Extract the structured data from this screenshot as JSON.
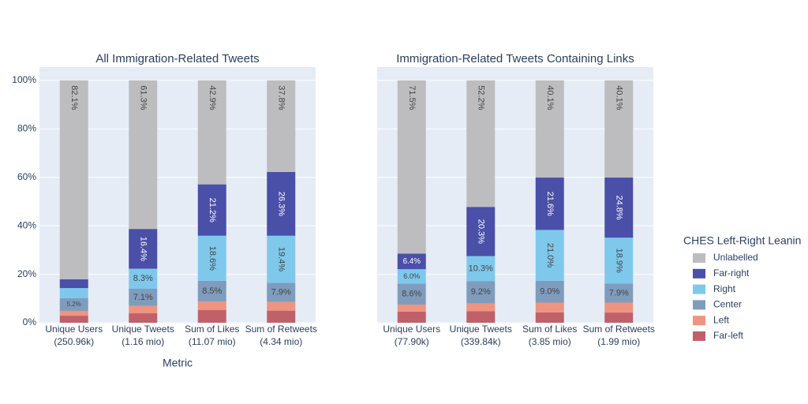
{
  "chart_data": [
    {
      "type": "bar",
      "stacked": true,
      "title": "All Immigration-Related Tweets",
      "x_label": "Metric",
      "legend_title": "CHES Left-Right Leanin",
      "legend": "right",
      "grid": true,
      "categories": [
        [
          "Unique Users",
          "(250.96k)"
        ],
        [
          "Unique Tweets",
          "(1.16 mio)"
        ],
        [
          "Sum of Likes",
          "(11.07 mio)"
        ],
        [
          "Sum of Retweets",
          "(4.34 mio)"
        ]
      ],
      "ylim": [
        0,
        105.5
      ],
      "yticks": [
        {
          "value": 0,
          "label": "0%"
        },
        {
          "value": 20,
          "label": "20%"
        },
        {
          "value": 40,
          "label": "40%"
        },
        {
          "value": 60,
          "label": "60%"
        },
        {
          "value": 80,
          "label": "80%"
        },
        {
          "value": 100,
          "label": "100%"
        }
      ],
      "series": [
        {
          "name": "Far-left",
          "color": "#c0616a",
          "values": [
            2.9,
            3.9,
            5.2,
            5.0
          ]
        },
        {
          "name": "Left",
          "color": "#ef9480",
          "values": [
            2.0,
            3.0,
            3.6,
            3.6
          ]
        },
        {
          "name": "Center",
          "color": "#7f9cbd",
          "values": [
            5.2,
            7.1,
            8.5,
            7.9
          ],
          "value_labels": [
            "5.2%",
            "7.1%",
            "8.5%",
            "7.9%"
          ]
        },
        {
          "name": "Right",
          "color": "#7ec8ec",
          "values": [
            4.2,
            8.3,
            18.6,
            19.4
          ],
          "value_labels": [
            null,
            "8.3%",
            "18.6%",
            "19.4%"
          ]
        },
        {
          "name": "Far-right",
          "color": "#4a4fa8",
          "values": [
            3.6,
            16.4,
            21.2,
            26.3
          ],
          "value_labels": [
            null,
            "16.4%",
            "21.2%",
            "26.3%"
          ]
        },
        {
          "name": "Unlabelled",
          "color": "#bdbdbf",
          "values": [
            82.1,
            61.3,
            42.9,
            37.8
          ],
          "value_labels": [
            "82.1%",
            "61.3%",
            "42.9%",
            "37.8%"
          ]
        }
      ]
    },
    {
      "type": "bar",
      "stacked": true,
      "title": "Immigration-Related Tweets Containing Links",
      "grid": true,
      "categories": [
        [
          "Unique Users",
          "(77.90k)"
        ],
        [
          "Unique Tweets",
          "(339.84k)"
        ],
        [
          "Sum of Likes",
          "(3.85 mio)"
        ],
        [
          "Sum of Retweets",
          "(1.99 mio)"
        ]
      ],
      "ylim": [
        0,
        105.5
      ],
      "series": [
        {
          "name": "Far-left",
          "color": "#c0616a",
          "values": [
            4.6,
            4.8,
            4.3,
            4.2
          ]
        },
        {
          "name": "Left",
          "color": "#ef9480",
          "values": [
            2.9,
            3.2,
            4.0,
            4.1
          ]
        },
        {
          "name": "Center",
          "color": "#7f9cbd",
          "values": [
            8.6,
            9.2,
            9.0,
            7.9
          ],
          "value_labels": [
            "8.6%",
            "9.2%",
            "9.0%",
            "7.9%"
          ]
        },
        {
          "name": "Right",
          "color": "#7ec8ec",
          "values": [
            6.0,
            10.3,
            21.0,
            18.9
          ],
          "value_labels": [
            "6.0%",
            "10.3%",
            "21.0%",
            "18.9%"
          ]
        },
        {
          "name": "Far-right",
          "color": "#4a4fa8",
          "values": [
            6.4,
            20.3,
            21.6,
            24.8
          ],
          "value_labels": [
            "6.4%",
            "20.3%",
            "21.6%",
            "24.8%"
          ]
        },
        {
          "name": "Unlabelled",
          "color": "#bdbdbf",
          "values": [
            71.5,
            52.2,
            40.1,
            40.1
          ],
          "value_labels": [
            "71.5%",
            "52.2%",
            "40.1%",
            "40.1%"
          ]
        }
      ]
    }
  ]
}
